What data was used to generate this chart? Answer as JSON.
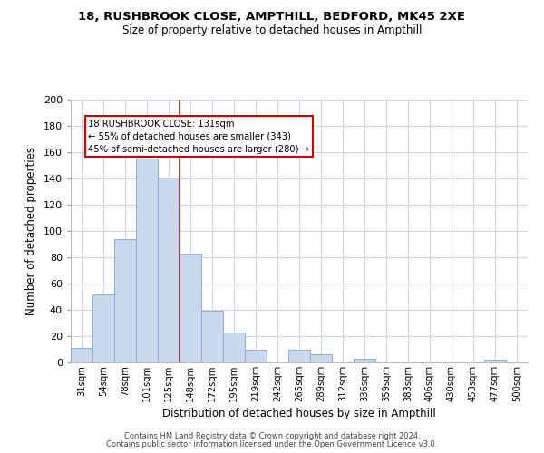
{
  "title": "18, RUSHBROOK CLOSE, AMPTHILL, BEDFORD, MK45 2XE",
  "subtitle": "Size of property relative to detached houses in Ampthill",
  "xlabel": "Distribution of detached houses by size in Ampthill",
  "ylabel": "Number of detached properties",
  "footer_line1": "Contains HM Land Registry data © Crown copyright and database right 2024.",
  "footer_line2": "Contains public sector information licensed under the Open Government Licence v3.0.",
  "bar_labels": [
    "31sqm",
    "54sqm",
    "78sqm",
    "101sqm",
    "125sqm",
    "148sqm",
    "172sqm",
    "195sqm",
    "219sqm",
    "242sqm",
    "265sqm",
    "289sqm",
    "312sqm",
    "336sqm",
    "359sqm",
    "383sqm",
    "406sqm",
    "430sqm",
    "453sqm",
    "477sqm",
    "500sqm"
  ],
  "bar_values": [
    11,
    52,
    94,
    155,
    141,
    83,
    39,
    23,
    10,
    0,
    10,
    6,
    0,
    3,
    0,
    0,
    0,
    0,
    0,
    2,
    0
  ],
  "bar_color": "#c8d9ef",
  "bar_edge_color": "#8bafd4",
  "property_line_x": 4.5,
  "annotation_title": "18 RUSHBROOK CLOSE: 131sqm",
  "annotation_line1": "← 55% of detached houses are smaller (343)",
  "annotation_line2": "45% of semi-detached houses are larger (280) →",
  "annotation_box_color": "#ffffff",
  "annotation_box_edge": "#cc0000",
  "vline_color": "#9e1a1a",
  "ylim": [
    0,
    200
  ],
  "yticks": [
    0,
    20,
    40,
    60,
    80,
    100,
    120,
    140,
    160,
    180,
    200
  ],
  "background_color": "#ffffff",
  "grid_color": "#ccd6e8"
}
